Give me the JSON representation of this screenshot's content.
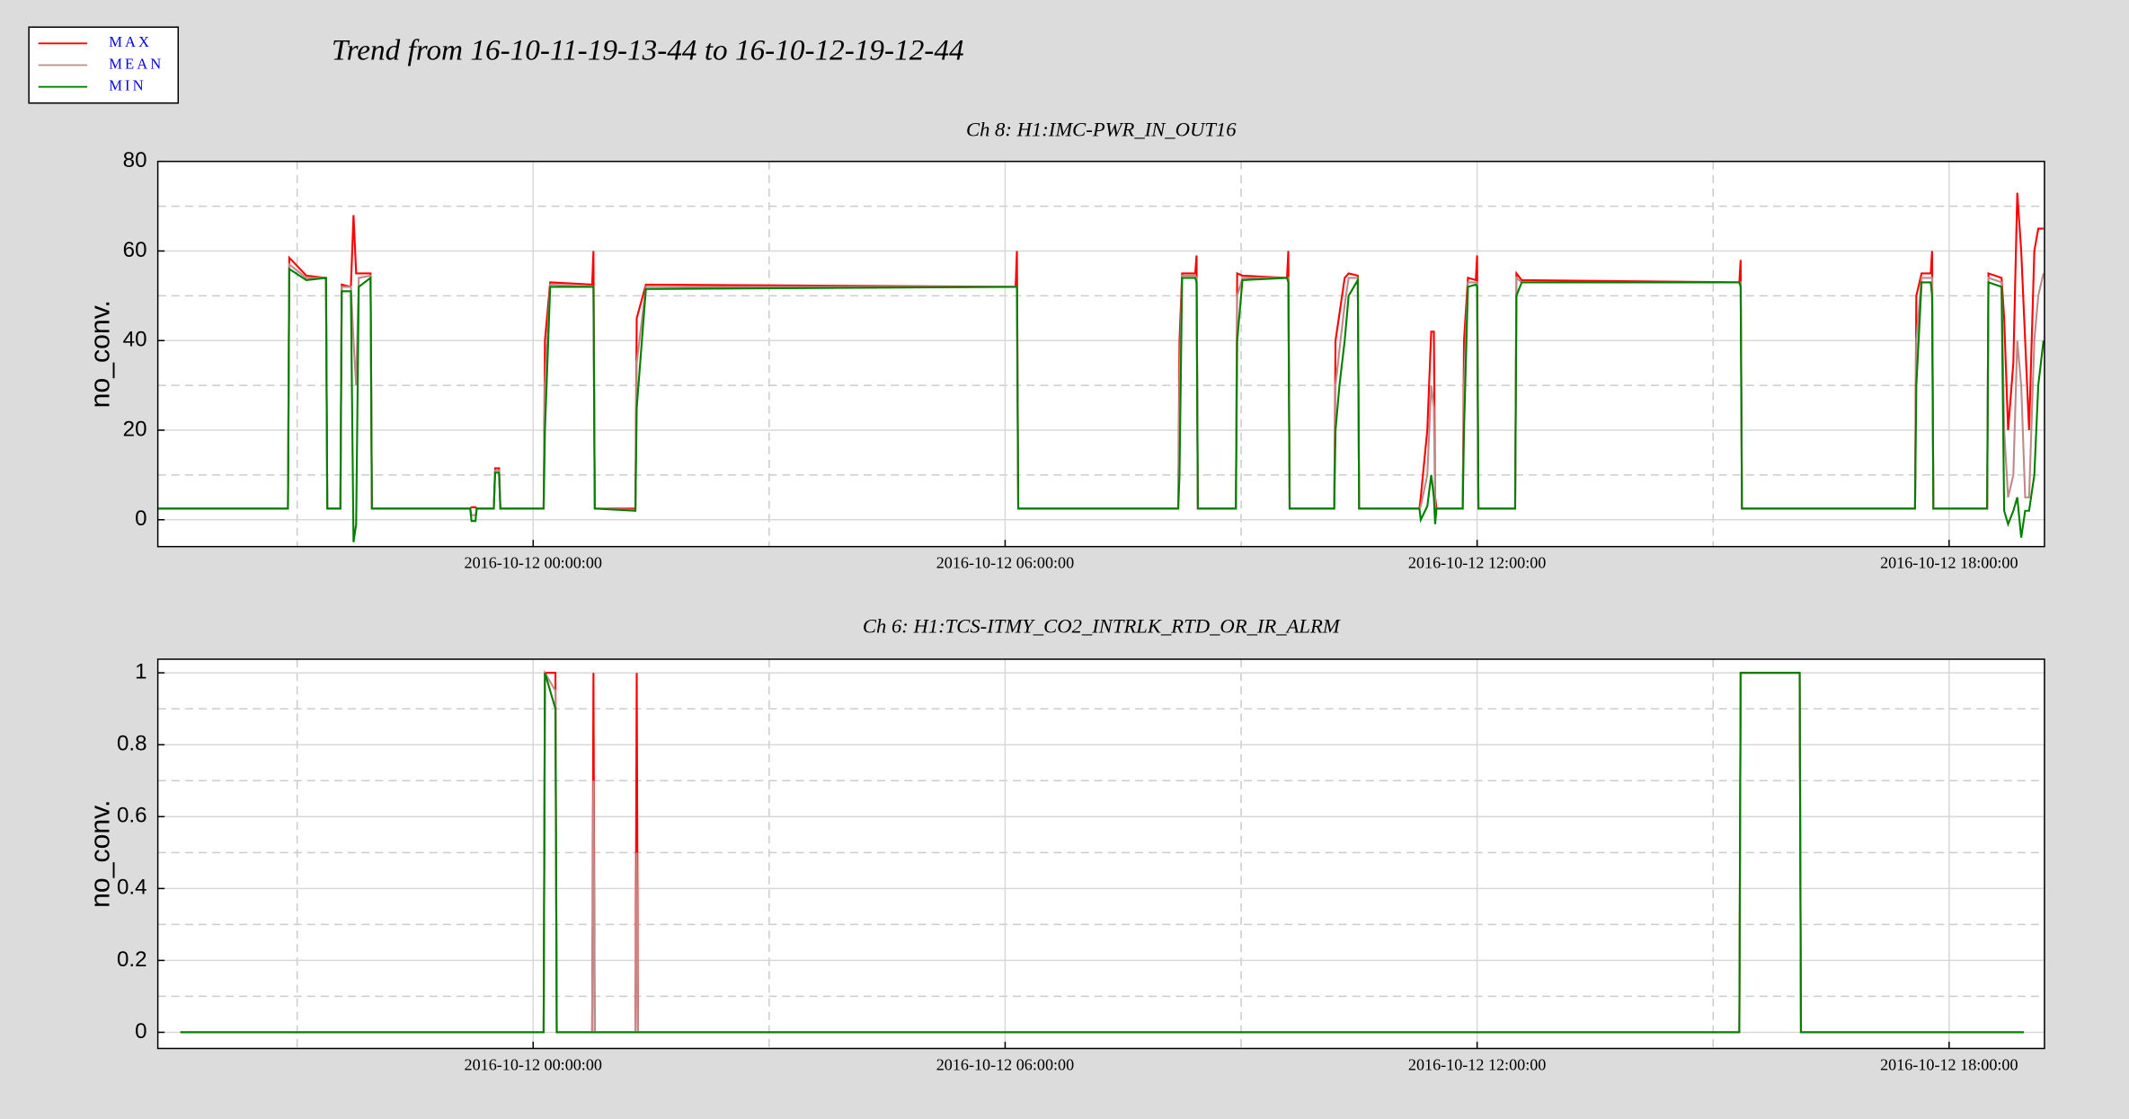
{
  "title": "Trend from 16-10-11-19-13-44 to 16-10-12-19-12-44",
  "chart_data": [
    {
      "type": "line",
      "title": "Ch 8: H1:IMC-PWR_IN_OUT16",
      "ylabel": "no_conv.",
      "xlim": [
        "2016-10-11 19:13:44",
        "2016-10-12 19:12:44"
      ],
      "xticks": [
        "2016-10-12 00:00:00",
        "2016-10-12 06:00:00",
        "2016-10-12 12:00:00",
        "2016-10-12 18:00:00"
      ],
      "ylim": [
        -6,
        80
      ],
      "yticks": [
        0,
        20,
        40,
        60,
        80
      ],
      "grid": true,
      "x": [
        "2016-10-11 19:13:44",
        "2016-10-11 20:53:00",
        "2016-10-11 20:54:00",
        "2016-10-11 21:07:00",
        "2016-10-11 21:22:00",
        "2016-10-11 21:23:00",
        "2016-10-11 21:33:00",
        "2016-10-11 21:34:00",
        "2016-10-11 21:41:00",
        "2016-10-11 21:43:00",
        "2016-10-11 21:45:00",
        "2016-10-11 21:47:00",
        "2016-10-11 21:56:00",
        "2016-10-11 21:57:00",
        "2016-10-11 23:12:00",
        "2016-10-11 23:13:00",
        "2016-10-11 23:16:00",
        "2016-10-11 23:17:00",
        "2016-10-11 23:30:00",
        "2016-10-11 23:31:00",
        "2016-10-11 23:34:00",
        "2016-10-11 23:35:00",
        "2016-10-12 00:08:00",
        "2016-10-12 00:09:00",
        "2016-10-12 00:13:00",
        "2016-10-12 00:45:00",
        "2016-10-12 00:46:00",
        "2016-10-12 00:47:00",
        "2016-10-12 01:18:00",
        "2016-10-12 01:19:00",
        "2016-10-12 01:26:00",
        "2016-10-12 06:08:00",
        "2016-10-12 06:09:00",
        "2016-10-12 06:10:00",
        "2016-10-12 08:12:00",
        "2016-10-12 08:13:00",
        "2016-10-12 08:15:00",
        "2016-10-12 08:25:00",
        "2016-10-12 08:26:00",
        "2016-10-12 08:27:00",
        "2016-10-12 08:56:00",
        "2016-10-12 08:57:00",
        "2016-10-12 09:01:00",
        "2016-10-12 09:35:00",
        "2016-10-12 09:36:00",
        "2016-10-12 09:37:00",
        "2016-10-12 10:11:00",
        "2016-10-12 10:12:00",
        "2016-10-12 10:15:00",
        "2016-10-12 10:19:00",
        "2016-10-12 10:22:00",
        "2016-10-12 10:29:00",
        "2016-10-12 10:30:00",
        "2016-10-12 11:16:00",
        "2016-10-12 11:17:00",
        "2016-10-12 11:22:00",
        "2016-10-12 11:25:00",
        "2016-10-12 11:27:00",
        "2016-10-12 11:28:00",
        "2016-10-12 11:29:00",
        "2016-10-12 11:49:00",
        "2016-10-12 11:50:00",
        "2016-10-12 11:53:00",
        "2016-10-12 11:59:00",
        "2016-10-12 12:00:00",
        "2016-10-12 12:01:00",
        "2016-10-12 12:29:00",
        "2016-10-12 12:30:00",
        "2016-10-12 12:34:00",
        "2016-10-12 15:20:00",
        "2016-10-12 15:21:00",
        "2016-10-12 15:22:00",
        "2016-10-12 17:34:00",
        "2016-10-12 17:35:00",
        "2016-10-12 17:39:00",
        "2016-10-12 17:46:00",
        "2016-10-12 17:47:00",
        "2016-10-12 17:48:00",
        "2016-10-12 18:29:00",
        "2016-10-12 18:30:00",
        "2016-10-12 18:40:00",
        "2016-10-12 18:42:00",
        "2016-10-12 18:45:00",
        "2016-10-12 18:49:00",
        "2016-10-12 18:52:00",
        "2016-10-12 18:55:00",
        "2016-10-12 18:58:00",
        "2016-10-12 19:01:00",
        "2016-10-12 19:05:00",
        "2016-10-12 19:08:00",
        "2016-10-12 19:12:00"
      ],
      "series": [
        {
          "name": "MAX",
          "color": "#ff0000",
          "values": [
            2.5,
            2.5,
            58.5,
            54.5,
            54,
            2.5,
            2.5,
            52.5,
            52,
            68,
            55,
            55,
            55,
            2.5,
            2.5,
            2.8,
            2.8,
            2.5,
            2.5,
            11.5,
            11.5,
            2.5,
            2.5,
            40,
            53,
            52.5,
            60,
            2.5,
            2.5,
            45,
            52.5,
            52,
            60,
            2.5,
            2.5,
            40,
            55,
            55,
            59,
            2.5,
            2.5,
            55,
            54.5,
            54,
            60,
            2.5,
            2.5,
            40,
            46,
            54,
            55,
            54.5,
            2.5,
            2.5,
            5,
            20,
            42,
            42,
            5,
            2.5,
            2.5,
            40,
            54,
            53.5,
            59,
            2.5,
            2.5,
            55,
            53.5,
            53,
            58,
            2.5,
            2.5,
            50,
            55,
            55,
            60,
            2.5,
            2.5,
            55,
            54,
            45,
            20,
            35,
            73,
            60,
            40,
            20,
            60,
            65,
            65
          ]
        },
        {
          "name": "MEAN",
          "color": "#c08a8a",
          "values": [
            2.5,
            2.5,
            57,
            54,
            54,
            2.5,
            2.5,
            52,
            52,
            40,
            30,
            54,
            54.5,
            2.5,
            2.5,
            1,
            1,
            2.5,
            2.5,
            11,
            11,
            2.5,
            2.5,
            30,
            52.5,
            52,
            52,
            2.5,
            2.2,
            35,
            52,
            52,
            52,
            2.5,
            2.5,
            30,
            54.5,
            54.5,
            54,
            2.5,
            2.5,
            50,
            54,
            54,
            54,
            2.5,
            2.5,
            30,
            38,
            48,
            54,
            54,
            2.5,
            2.5,
            3,
            10,
            30,
            25,
            2,
            2.5,
            2.5,
            30,
            53,
            53,
            53,
            2.5,
            2.5,
            54,
            53,
            53,
            53,
            2.5,
            2.5,
            40,
            54,
            54,
            54,
            2.5,
            2.5,
            54,
            53,
            20,
            5,
            10,
            40,
            30,
            5,
            5,
            40,
            50,
            55
          ]
        },
        {
          "name": "MIN",
          "color": "#008000",
          "values": [
            2.5,
            2.5,
            56,
            53.5,
            54,
            2.5,
            2.5,
            51,
            51,
            -5,
            -1,
            52,
            54,
            2.5,
            2.5,
            -0.3,
            -0.3,
            2.5,
            2.5,
            10.5,
            10.5,
            2.5,
            2.5,
            20,
            52,
            52,
            52,
            2.5,
            2,
            25,
            51.5,
            52,
            52,
            2.5,
            2.5,
            10,
            54,
            54,
            53,
            2.5,
            2.5,
            40,
            53.5,
            54,
            53,
            2.5,
            2.5,
            20,
            30,
            40,
            50,
            53.5,
            2.5,
            2.5,
            0,
            3,
            10,
            5,
            -1,
            2.5,
            2.5,
            20,
            52,
            52.5,
            52,
            2.5,
            2.5,
            50,
            53,
            53,
            52,
            2.5,
            2.5,
            30,
            53,
            53,
            50,
            2.5,
            2.5,
            53,
            52,
            2,
            -1,
            2,
            5,
            -4,
            2,
            2,
            10,
            30,
            40
          ]
        }
      ]
    },
    {
      "type": "line",
      "title": "Ch 6: H1:TCS-ITMY_CO2_INTRLK_RTD_OR_IR_ALRM",
      "ylabel": "no_conv.",
      "xlim": [
        "2016-10-11 19:13:44",
        "2016-10-12 19:12:44"
      ],
      "xticks": [
        "2016-10-12 00:00:00",
        "2016-10-12 06:00:00",
        "2016-10-12 12:00:00",
        "2016-10-12 18:00:00"
      ],
      "ylim": [
        -0.045,
        1.038
      ],
      "yticks": [
        0,
        0.2,
        0.4,
        0.6,
        0.8,
        1
      ],
      "grid": true,
      "x": [
        "2016-10-11 19:31:00",
        "2016-10-12 00:08:00",
        "2016-10-12 00:09:00",
        "2016-10-12 00:17:00",
        "2016-10-12 00:18:00",
        "2016-10-12 00:45:00",
        "2016-10-12 00:46:00",
        "2016-10-12 00:47:00",
        "2016-10-12 01:18:00",
        "2016-10-12 01:19:00",
        "2016-10-12 01:20:00",
        "2016-10-12 15:20:00",
        "2016-10-12 15:21:00",
        "2016-10-12 16:06:00",
        "2016-10-12 16:07:00",
        "2016-10-12 18:57:00"
      ],
      "series": [
        {
          "name": "MAX",
          "color": "#ff0000",
          "values": [
            0,
            0,
            1,
            1,
            0,
            0,
            1,
            0,
            0,
            1,
            0,
            0,
            1,
            1,
            0,
            0
          ]
        },
        {
          "name": "MEAN",
          "color": "#c08a8a",
          "values": [
            0,
            0,
            1,
            0.95,
            0,
            0,
            0.7,
            0,
            0,
            0.5,
            0,
            0,
            1,
            1,
            0,
            0
          ]
        },
        {
          "name": "MIN",
          "color": "#008000",
          "values": [
            0,
            0,
            1,
            0.9,
            0,
            0,
            0,
            0,
            0,
            0,
            0,
            0,
            1,
            1,
            0,
            0
          ]
        }
      ]
    }
  ]
}
